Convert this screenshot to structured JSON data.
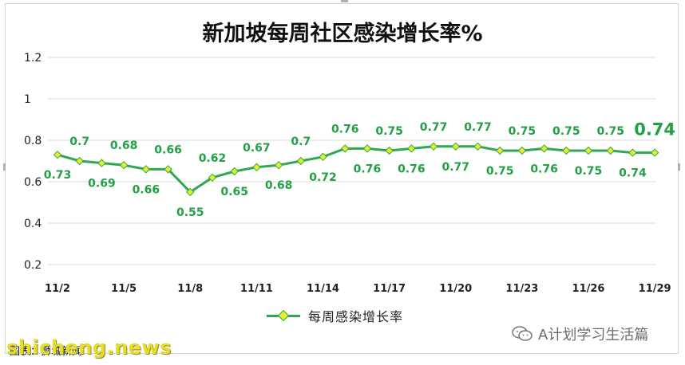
{
  "colors": {
    "line": "#2fa84f",
    "marker": "#e8ef2a",
    "grid": "#d9d9d9",
    "label": "#22a044"
  },
  "chart_data": {
    "type": "line",
    "title": "新加坡每周社区感染增长率%",
    "xlabel": "",
    "ylabel": "",
    "ylim": [
      0.2,
      1.2
    ],
    "yticks": [
      "0.2",
      "0.4",
      "0.6",
      "0.8",
      "1",
      "1.2"
    ],
    "grid": true,
    "legend_position": "bottom",
    "x": [
      "11/2",
      "11/3",
      "11/4",
      "11/5",
      "11/6",
      "11/7",
      "11/8",
      "11/9",
      "11/10",
      "11/11",
      "11/12",
      "11/13",
      "11/14",
      "11/15",
      "11/16",
      "11/17",
      "11/18",
      "11/19",
      "11/20",
      "11/21",
      "11/22",
      "11/23",
      "11/24",
      "11/25",
      "11/26",
      "11/27",
      "11/28",
      "11/29"
    ],
    "xtick_labels": [
      "11/2",
      "11/5",
      "11/8",
      "11/11",
      "11/14",
      "11/17",
      "11/20",
      "11/23",
      "11/26",
      "11/29"
    ],
    "series": [
      {
        "name": "每周感染增长率",
        "values": [
          0.73,
          0.7,
          0.69,
          0.68,
          0.66,
          0.66,
          0.55,
          0.62,
          0.65,
          0.67,
          0.68,
          0.7,
          0.72,
          0.76,
          0.76,
          0.75,
          0.76,
          0.77,
          0.77,
          0.77,
          0.75,
          0.75,
          0.76,
          0.75,
          0.75,
          0.75,
          0.74,
          0.74
        ]
      }
    ],
    "data_labels": [
      "0.73",
      "0.7",
      "0.69",
      "0.68",
      "0.66",
      "0.66",
      "0.55",
      "0.62",
      "0.65",
      "0.67",
      "0.68",
      "0.7",
      "0.72",
      "0.76",
      "0.76",
      "0.75",
      "0.76",
      "0.77",
      "0.77",
      "0.77",
      "0.75",
      "0.75",
      "0.76",
      "0.75",
      "0.75",
      "0.75",
      "0.74",
      "0.74"
    ],
    "highlight_last_label": true
  },
  "watermarks": {
    "wechat_icon": "wechat-icon",
    "wechat_text": "A计划学习生活篇",
    "site_text": "shicheng.news",
    "source_text": "图表：狮城新闻"
  }
}
